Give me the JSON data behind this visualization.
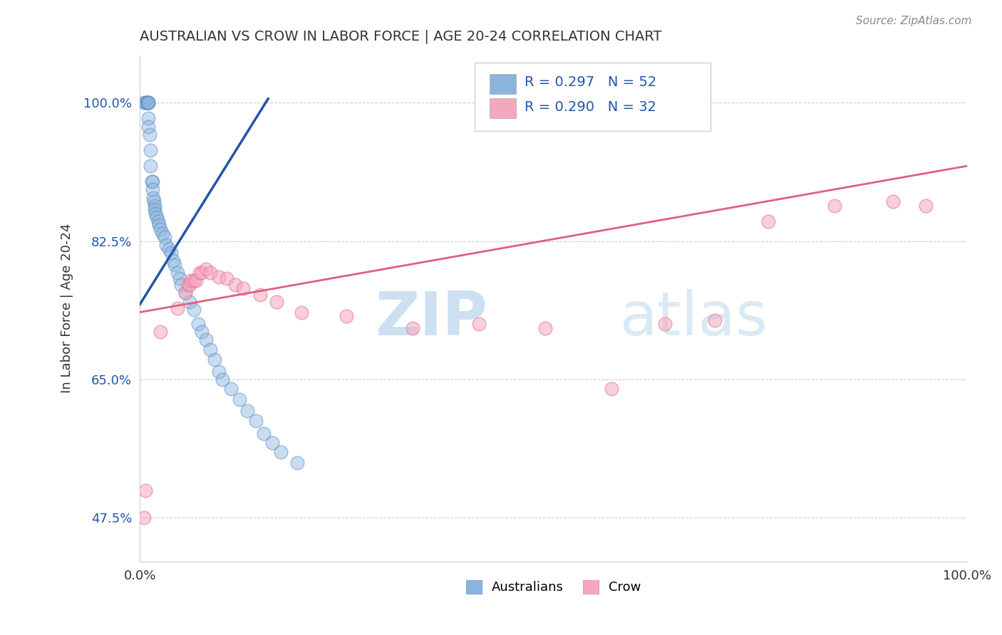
{
  "title": "AUSTRALIAN VS CROW IN LABOR FORCE | AGE 20-24 CORRELATION CHART",
  "source_text": "Source: ZipAtlas.com",
  "xlabel": "",
  "ylabel": "In Labor Force | Age 20-24",
  "xlim": [
    0.0,
    1.0
  ],
  "ylim": [
    0.42,
    1.06
  ],
  "yticks": [
    0.475,
    0.65,
    0.825,
    1.0
  ],
  "ytick_labels": [
    "47.5%",
    "65.0%",
    "82.5%",
    "100.0%"
  ],
  "xticks": [
    0.0,
    0.25,
    0.5,
    0.75,
    1.0
  ],
  "xtick_labels": [
    "0.0%",
    "",
    "",
    "",
    "100.0%"
  ],
  "blue_color": "#8ab4de",
  "pink_color": "#f4a8be",
  "blue_edge_color": "#5a8abf",
  "pink_edge_color": "#e87898",
  "blue_line_color": "#2255aa",
  "pink_line_color": "#e06080",
  "watermark_zip": "ZIP",
  "watermark_atlas": "atlas",
  "australians_x": [
    0.005,
    0.007,
    0.008,
    0.009,
    0.01,
    0.01,
    0.01,
    0.01,
    0.01,
    0.012,
    0.013,
    0.013,
    0.014,
    0.015,
    0.015,
    0.016,
    0.017,
    0.018,
    0.018,
    0.019,
    0.02,
    0.022,
    0.023,
    0.025,
    0.027,
    0.03,
    0.032,
    0.035,
    0.038,
    0.04,
    0.042,
    0.045,
    0.048,
    0.05,
    0.055,
    0.06,
    0.065,
    0.07,
    0.075,
    0.08,
    0.085,
    0.09,
    0.095,
    0.1,
    0.11,
    0.12,
    0.13,
    0.14,
    0.15,
    0.16,
    0.17,
    0.19
  ],
  "australians_y": [
    1.0,
    1.0,
    1.0,
    1.0,
    1.0,
    1.0,
    1.0,
    0.98,
    0.97,
    0.96,
    0.94,
    0.92,
    0.9,
    0.9,
    0.89,
    0.88,
    0.875,
    0.87,
    0.865,
    0.86,
    0.855,
    0.85,
    0.845,
    0.84,
    0.835,
    0.83,
    0.82,
    0.815,
    0.81,
    0.8,
    0.795,
    0.785,
    0.778,
    0.77,
    0.76,
    0.748,
    0.738,
    0.72,
    0.71,
    0.7,
    0.688,
    0.675,
    0.66,
    0.65,
    0.638,
    0.625,
    0.61,
    0.598,
    0.582,
    0.57,
    0.558,
    0.545
  ],
  "crow_x": [
    0.005,
    0.007,
    0.025,
    0.045,
    0.055,
    0.058,
    0.06,
    0.062,
    0.065,
    0.068,
    0.072,
    0.075,
    0.08,
    0.085,
    0.095,
    0.105,
    0.115,
    0.125,
    0.145,
    0.165,
    0.195,
    0.25,
    0.33,
    0.41,
    0.49,
    0.57,
    0.635,
    0.695,
    0.76,
    0.84,
    0.91,
    0.95
  ],
  "crow_y": [
    0.475,
    0.51,
    0.71,
    0.74,
    0.76,
    0.77,
    0.77,
    0.775,
    0.775,
    0.775,
    0.785,
    0.785,
    0.79,
    0.785,
    0.78,
    0.778,
    0.77,
    0.765,
    0.757,
    0.748,
    0.735,
    0.73,
    0.715,
    0.72,
    0.715,
    0.638,
    0.72,
    0.725,
    0.85,
    0.87,
    0.875,
    0.87
  ],
  "blue_line_x": [
    0.0,
    0.155
  ],
  "blue_line_y_start": 0.745,
  "blue_line_y_end": 1.005,
  "pink_line_x": [
    0.0,
    1.0
  ],
  "pink_line_y_start": 0.735,
  "pink_line_y_end": 0.92
}
